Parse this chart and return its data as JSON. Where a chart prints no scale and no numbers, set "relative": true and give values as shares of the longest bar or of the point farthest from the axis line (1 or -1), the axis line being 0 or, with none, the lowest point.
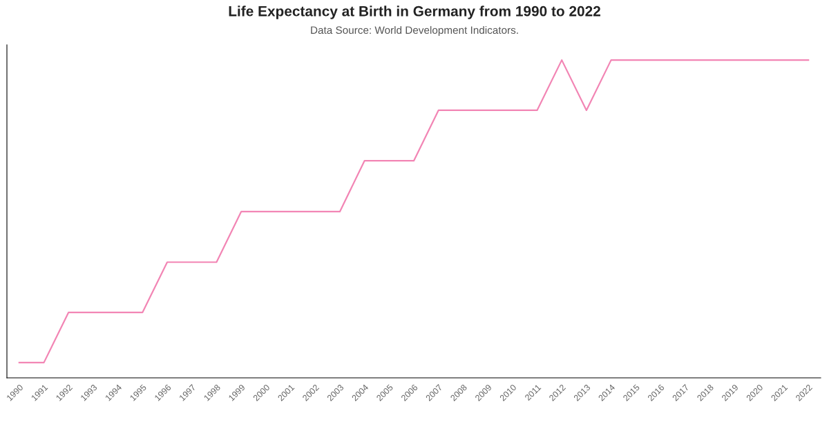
{
  "chart_data": {
    "type": "line",
    "title": "Life Expectancy at Birth in Germany from 1990 to 2022",
    "subtitle": "Data Source: World Development Indicators.",
    "categories": [
      "1990",
      "1991",
      "1992",
      "1993",
      "1994",
      "1995",
      "1996",
      "1997",
      "1998",
      "1999",
      "2000",
      "2001",
      "2002",
      "2003",
      "2004",
      "2005",
      "2006",
      "2007",
      "2008",
      "2009",
      "2010",
      "2011",
      "2012",
      "2013",
      "2014",
      "2015",
      "2016",
      "2017",
      "2018",
      "2019",
      "2020",
      "2021",
      "2022"
    ],
    "series": [
      {
        "color": "#f285b4",
        "values": [
          0.048,
          0.048,
          0.206,
          0.206,
          0.206,
          0.206,
          0.364,
          0.364,
          0.364,
          0.523,
          0.523,
          0.523,
          0.523,
          0.523,
          0.683,
          0.683,
          0.683,
          0.842,
          0.842,
          0.842,
          0.842,
          0.842,
          1,
          0.842,
          1,
          1,
          1,
          1,
          1,
          1,
          1,
          1,
          1
        ]
      }
    ],
    "relative": true,
    "grid": false,
    "legend": false,
    "marker": "none",
    "line_style": "solid"
  }
}
